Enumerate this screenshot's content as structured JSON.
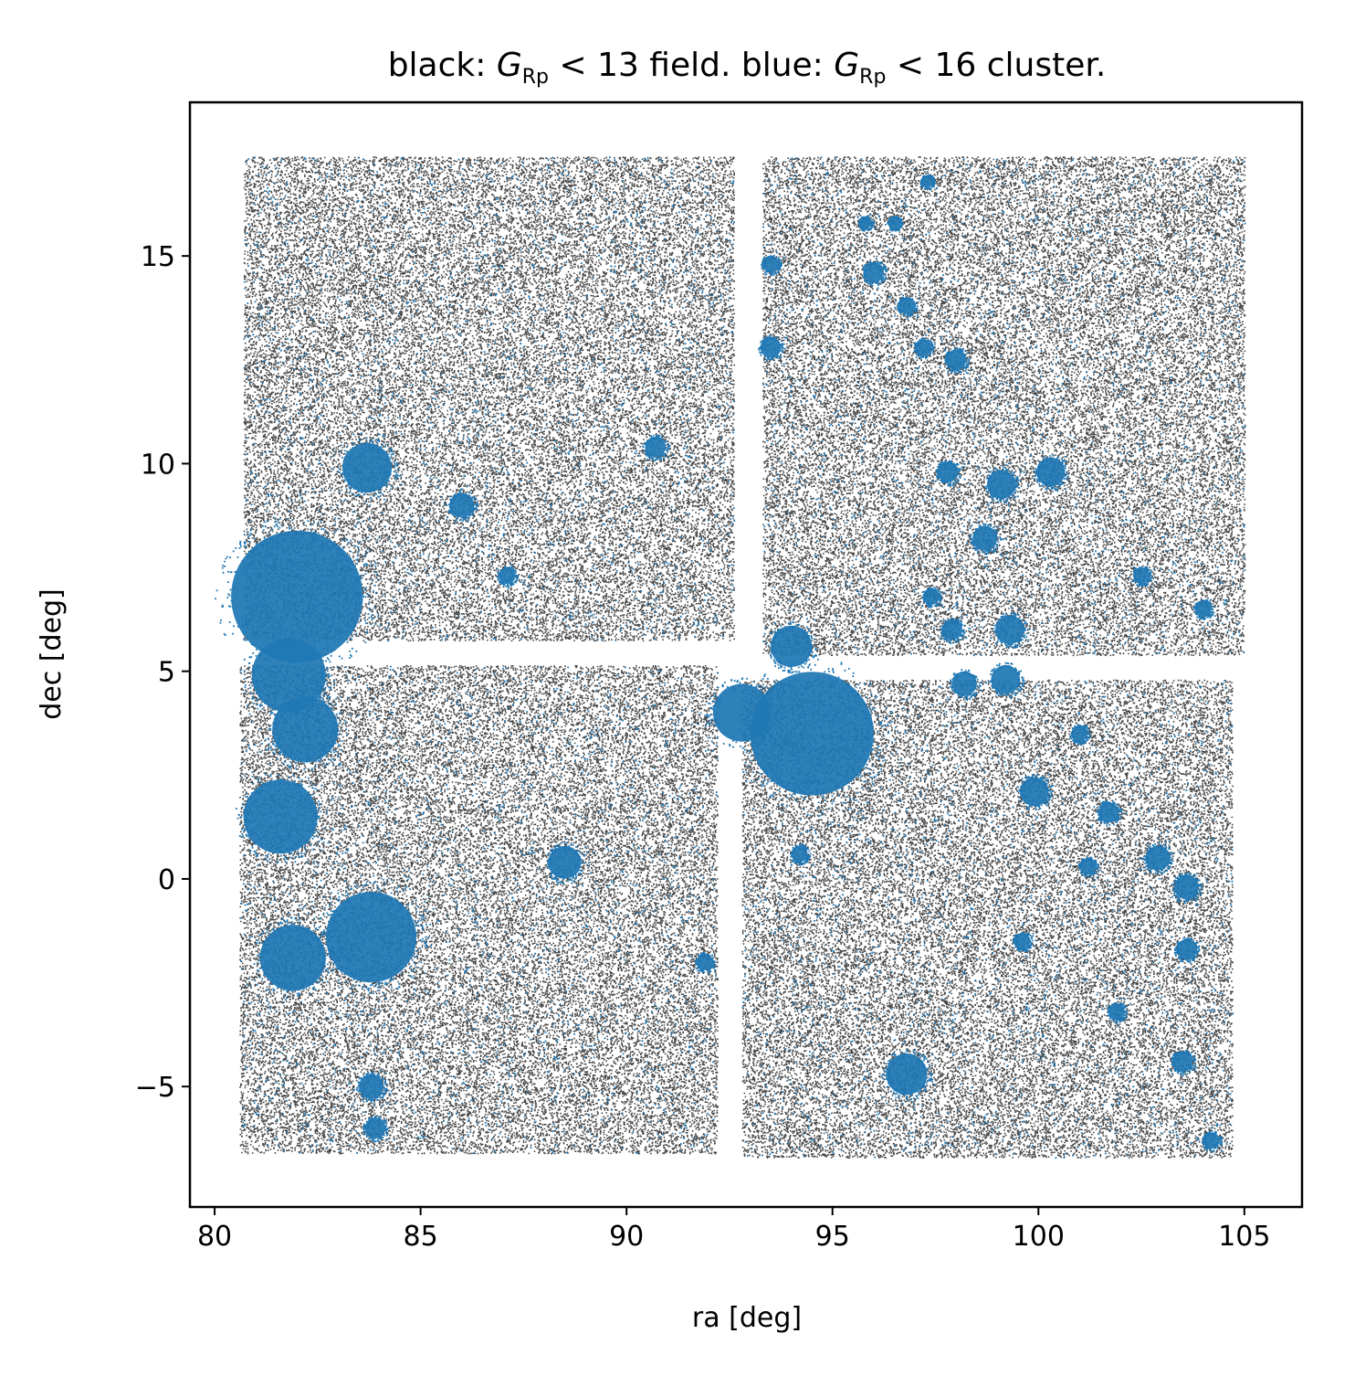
{
  "chart_data": {
    "type": "scatter",
    "title_parts": {
      "p1": "black: ",
      "var1": "G",
      "sub1": "Rp",
      "p2": " < 13 field. blue: ",
      "var2": "G",
      "sub2": "Rp",
      "p3": " < 16 cluster."
    },
    "xlabel": "ra [deg]",
    "ylabel": "dec [deg]",
    "xlim": [
      79.4,
      106.4
    ],
    "ylim": [
      -7.9,
      18.7
    ],
    "xticks": [
      80,
      85,
      90,
      95,
      100,
      105
    ],
    "xtick_labels": [
      "80",
      "85",
      "90",
      "95",
      "100",
      "105"
    ],
    "yticks": [
      -5,
      0,
      5,
      10,
      15
    ],
    "ytick_labels": [
      "−5",
      "0",
      "5",
      "10",
      "15"
    ],
    "grid": false,
    "legend": "none",
    "colors": {
      "field": "#000000",
      "cluster": "#1f77b4"
    },
    "field_panels": [
      {
        "name": "upper-left",
        "ra": [
          80.7,
          92.6
        ],
        "dec": [
          5.75,
          17.4
        ]
      },
      {
        "name": "upper-right",
        "ra": [
          93.3,
          105.0
        ],
        "dec": [
          5.4,
          17.4
        ]
      },
      {
        "name": "lower-left",
        "ra": [
          80.6,
          92.2
        ],
        "dec": [
          -6.6,
          5.15
        ]
      },
      {
        "name": "lower-right",
        "ra": [
          92.8,
          104.7
        ],
        "dec": [
          -6.7,
          4.8
        ]
      }
    ],
    "series": [
      {
        "role": "field",
        "point_density_per_sq_deg": 280
      },
      {
        "role": "cluster",
        "clusters": [
          {
            "ra": 82.0,
            "dec": 6.8,
            "r": 1.6
          },
          {
            "ra": 83.8,
            "dec": -1.4,
            "r": 1.1
          },
          {
            "ra": 94.5,
            "dec": 3.5,
            "r": 1.5
          },
          {
            "ra": 92.8,
            "dec": 4.0,
            "r": 0.7
          },
          {
            "ra": 81.8,
            "dec": 4.9,
            "r": 0.9
          },
          {
            "ra": 82.2,
            "dec": 3.6,
            "r": 0.8
          },
          {
            "ra": 81.6,
            "dec": 1.5,
            "r": 0.9
          },
          {
            "ra": 81.9,
            "dec": -1.9,
            "r": 0.8
          },
          {
            "ra": 83.7,
            "dec": 9.9,
            "r": 0.6
          },
          {
            "ra": 96.8,
            "dec": -4.7,
            "r": 0.5
          },
          {
            "ra": 94.0,
            "dec": 5.6,
            "r": 0.5
          },
          {
            "ra": 88.5,
            "dec": 0.4,
            "r": 0.4
          },
          {
            "ra": 90.7,
            "dec": 10.4,
            "r": 0.25
          },
          {
            "ra": 99.1,
            "dec": 9.5,
            "r": 0.35
          },
          {
            "ra": 100.3,
            "dec": 9.8,
            "r": 0.35
          },
          {
            "ra": 97.8,
            "dec": 9.8,
            "r": 0.25
          },
          {
            "ra": 98.7,
            "dec": 8.2,
            "r": 0.3
          },
          {
            "ra": 99.3,
            "dec": 6.0,
            "r": 0.35
          },
          {
            "ra": 97.4,
            "dec": 6.8,
            "r": 0.2
          },
          {
            "ra": 97.9,
            "dec": 6.0,
            "r": 0.25
          },
          {
            "ra": 93.5,
            "dec": 12.8,
            "r": 0.25
          },
          {
            "ra": 93.5,
            "dec": 14.8,
            "r": 0.2
          },
          {
            "ra": 96.0,
            "dec": 14.6,
            "r": 0.25
          },
          {
            "ra": 96.8,
            "dec": 13.8,
            "r": 0.2
          },
          {
            "ra": 97.2,
            "dec": 12.8,
            "r": 0.2
          },
          {
            "ra": 98.0,
            "dec": 12.5,
            "r": 0.25
          },
          {
            "ra": 102.5,
            "dec": 7.3,
            "r": 0.2
          },
          {
            "ra": 104.0,
            "dec": 6.5,
            "r": 0.2
          },
          {
            "ra": 103.6,
            "dec": -0.2,
            "r": 0.3
          },
          {
            "ra": 103.6,
            "dec": -1.7,
            "r": 0.25
          },
          {
            "ra": 103.5,
            "dec": -4.4,
            "r": 0.25
          },
          {
            "ra": 104.2,
            "dec": -6.3,
            "r": 0.2
          },
          {
            "ra": 101.9,
            "dec": -3.2,
            "r": 0.2
          },
          {
            "ra": 101.2,
            "dec": 0.3,
            "r": 0.2
          },
          {
            "ra": 99.9,
            "dec": 2.1,
            "r": 0.35
          },
          {
            "ra": 101.7,
            "dec": 1.6,
            "r": 0.25
          },
          {
            "ra": 102.9,
            "dec": 0.5,
            "r": 0.3
          },
          {
            "ra": 99.6,
            "dec": -1.5,
            "r": 0.2
          },
          {
            "ra": 94.2,
            "dec": 0.6,
            "r": 0.2
          },
          {
            "ra": 99.2,
            "dec": 4.8,
            "r": 0.35
          },
          {
            "ra": 98.2,
            "dec": 4.7,
            "r": 0.3
          },
          {
            "ra": 101.0,
            "dec": 3.5,
            "r": 0.2
          },
          {
            "ra": 87.1,
            "dec": 7.3,
            "r": 0.2
          },
          {
            "ra": 83.8,
            "dec": -5.0,
            "r": 0.3
          },
          {
            "ra": 83.9,
            "dec": -6.0,
            "r": 0.25
          },
          {
            "ra": 86.0,
            "dec": 9.0,
            "r": 0.3
          },
          {
            "ra": 91.9,
            "dec": -2.0,
            "r": 0.2
          },
          {
            "ra": 95.8,
            "dec": 15.8,
            "r": 0.15
          },
          {
            "ra": 96.5,
            "dec": 15.8,
            "r": 0.15
          },
          {
            "ra": 97.3,
            "dec": 16.8,
            "r": 0.15
          }
        ],
        "scatter_fraction": 0.06
      }
    ]
  }
}
